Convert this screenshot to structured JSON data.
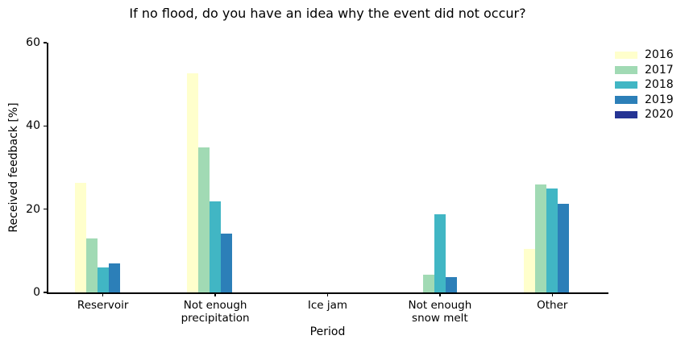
{
  "chart_data": {
    "type": "bar",
    "title": "If no flood, do you have an idea why the event did not occur?",
    "xlabel": "Period",
    "ylabel": "Received feedback [%]",
    "ylim": [
      0,
      60
    ],
    "yticks": [
      0,
      20,
      40,
      60
    ],
    "grid": false,
    "legend_position": "outside-upper-right",
    "categories": [
      "Reservoir",
      "Not enough\nprecipitation",
      "Ice jam",
      "Not enough\nsnow melt",
      "Other"
    ],
    "series": [
      {
        "name": "2016",
        "color": "#FFFFCC",
        "values": [
          26.3,
          52.7,
          0,
          0,
          10.4
        ]
      },
      {
        "name": "2017",
        "color": "#A1DAB4",
        "values": [
          12.9,
          34.8,
          0,
          4.2,
          26.0
        ]
      },
      {
        "name": "2018",
        "color": "#41B6C4",
        "values": [
          6.0,
          21.8,
          0,
          18.7,
          24.9
        ]
      },
      {
        "name": "2019",
        "color": "#2C7FB8",
        "values": [
          7.0,
          14.2,
          0,
          3.6,
          21.3
        ]
      },
      {
        "name": "2020",
        "color": "#253494",
        "values": [
          0,
          0,
          0,
          0,
          0
        ]
      }
    ]
  }
}
